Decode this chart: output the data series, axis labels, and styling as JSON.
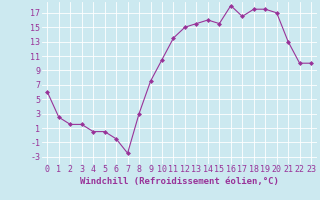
{
  "x": [
    0,
    1,
    2,
    3,
    4,
    5,
    6,
    7,
    8,
    9,
    10,
    11,
    12,
    13,
    14,
    15,
    16,
    17,
    18,
    19,
    20,
    21,
    22,
    23
  ],
  "y": [
    6,
    2.5,
    1.5,
    1.5,
    0.5,
    0.5,
    -0.5,
    -2.5,
    3,
    7.5,
    10.5,
    13.5,
    15,
    15.5,
    16,
    15.5,
    18,
    16.5,
    17.5,
    17.5,
    17,
    13,
    10,
    10
  ],
  "xlim": [
    -0.5,
    23.5
  ],
  "ylim": [
    -4,
    18.5
  ],
  "yticks": [
    -3,
    -1,
    1,
    3,
    5,
    7,
    9,
    11,
    13,
    15,
    17
  ],
  "xticks": [
    0,
    1,
    2,
    3,
    4,
    5,
    6,
    7,
    8,
    9,
    10,
    11,
    12,
    13,
    14,
    15,
    16,
    17,
    18,
    19,
    20,
    21,
    22,
    23
  ],
  "xlabel": "Windchill (Refroidissement éolien,°C)",
  "line_color": "#993399",
  "marker": "D",
  "marker_size": 2.0,
  "background_color": "#cce9f0",
  "grid_color": "#ffffff",
  "text_color": "#993399",
  "tick_fontsize": 6.0,
  "xlabel_fontsize": 6.5
}
